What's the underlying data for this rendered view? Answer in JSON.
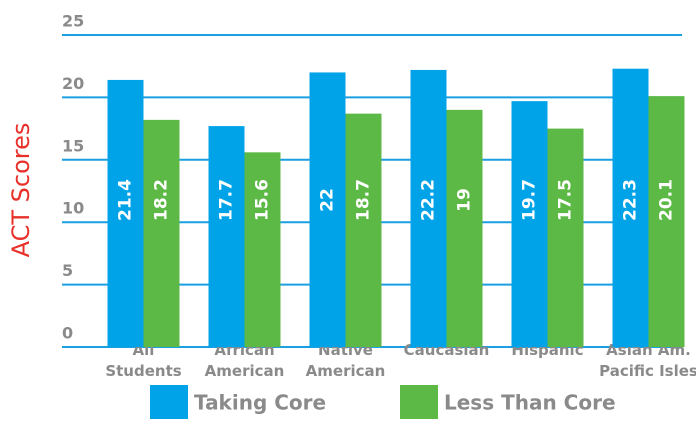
{
  "chart_data": {
    "type": "bar",
    "y_label": "ACT Scores",
    "categories": [
      "All\nStudents",
      "African\nAmerican",
      "Native\nAmerican",
      "Caucasian",
      "Hispanic",
      "Asian Am.\nPacific Isles"
    ],
    "series": [
      {
        "name": "Taking Core",
        "color": "#00a3e8",
        "values": [
          21.4,
          17.7,
          22,
          22.2,
          19.7,
          22.3
        ]
      },
      {
        "name": "Less Than Core",
        "color": "#5cb946",
        "values": [
          18.2,
          15.6,
          18.7,
          19,
          17.5,
          20.1
        ]
      }
    ],
    "ylim": [
      0,
      25
    ],
    "yticks": [
      0,
      5,
      10,
      15,
      20,
      25
    ],
    "grid": true,
    "grid_color": "#1a9fe0"
  }
}
